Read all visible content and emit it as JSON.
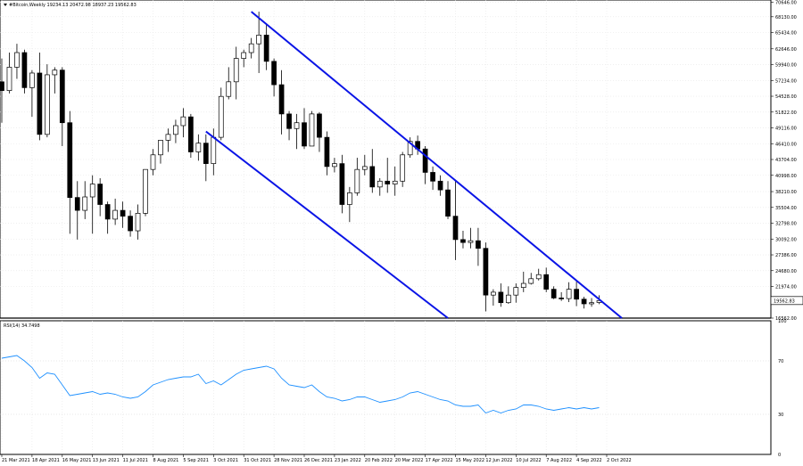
{
  "main_panel": {
    "title": "#Bitcoin,Weekly  19234.13 20472.98 18937.23 19562.83",
    "price_badge": "19562.83",
    "y_ticks": [
      "70646.00",
      "68130.00",
      "65434.00",
      "62646.00",
      "59940.00",
      "57234.00",
      "54528.00",
      "51822.00",
      "49116.00",
      "46410.00",
      "43704.00",
      "40998.00",
      "38210.00",
      "35504.00",
      "32798.00",
      "30092.00",
      "27386.00",
      "24680.00",
      "21974.00",
      "19562.83",
      "16562.00"
    ]
  },
  "rsi_panel": {
    "title": "RSI(14) 34.7498",
    "y_ticks": [
      "100",
      "70",
      "30",
      "0"
    ]
  },
  "x_ticks": [
    "21 Mar 2021",
    "18 Apr 2021",
    "16 May 2021",
    "13 Jun 2021",
    "11 Jul 2021",
    "8 Aug 2021",
    "5 Sep 2021",
    "3 Oct 2021",
    "31 Oct 2021",
    "28 Nov 2021",
    "26 Dec 2021",
    "23 Jan 2022",
    "20 Feb 2022",
    "20 Mar 2022",
    "17 Apr 2022",
    "15 May 2022",
    "12 Jun 2022",
    "10 Jul 2022",
    "7 Aug 2022",
    "4 Sep 2022",
    "2 Oct 2022"
  ],
  "chart_data": {
    "type": "candlestick",
    "title": "#Bitcoin,Weekly",
    "ylim": [
      16562,
      71000
    ],
    "series": [
      {
        "name": "#Bitcoin,Weekly",
        "ohlc": [
          [
            57000,
            61000,
            50000,
            55500
          ],
          [
            55500,
            62000,
            55000,
            59500
          ],
          [
            59500,
            63500,
            57500,
            62000
          ],
          [
            62000,
            62500,
            55000,
            56000
          ],
          [
            56000,
            59000,
            51000,
            58500
          ],
          [
            58500,
            62000,
            47000,
            48000
          ],
          [
            48000,
            60000,
            47500,
            58200
          ],
          [
            58200,
            59500,
            55000,
            59000
          ],
          [
            59000,
            59500,
            46000,
            50000
          ],
          [
            50000,
            52000,
            31000,
            37200
          ],
          [
            37200,
            40000,
            30000,
            35000
          ],
          [
            35000,
            40000,
            33500,
            37300
          ],
          [
            37300,
            41000,
            31000,
            39500
          ],
          [
            39500,
            40500,
            34000,
            36000
          ],
          [
            36000,
            36500,
            31000,
            33500
          ],
          [
            33500,
            37000,
            32500,
            35000
          ],
          [
            35000,
            36500,
            32000,
            34000
          ],
          [
            34000,
            35000,
            30500,
            31500
          ],
          [
            31500,
            36000,
            30000,
            34500
          ],
          [
            34500,
            42000,
            34000,
            42000
          ],
          [
            42000,
            45500,
            41000,
            44500
          ],
          [
            44500,
            47000,
            43000,
            47000
          ],
          [
            47000,
            49000,
            45000,
            48000
          ],
          [
            48000,
            50500,
            46500,
            49500
          ],
          [
            49500,
            52500,
            47500,
            51000
          ],
          [
            51000,
            51500,
            44000,
            45000
          ],
          [
            45000,
            48000,
            43500,
            46500
          ],
          [
            46500,
            48000,
            40000,
            43000
          ],
          [
            43000,
            49000,
            41000,
            47500
          ],
          [
            47500,
            56000,
            47000,
            54500
          ],
          [
            54500,
            59500,
            54000,
            57000
          ],
          [
            57000,
            63000,
            54000,
            61000
          ],
          [
            61000,
            62500,
            59500,
            62000
          ],
          [
            62000,
            64500,
            61000,
            63500
          ],
          [
            63500,
            69000,
            58500,
            65000
          ],
          [
            65000,
            67000,
            59000,
            60500
          ],
          [
            60500,
            61000,
            54500,
            56500
          ],
          [
            56500,
            59000,
            48000,
            51500
          ],
          [
            51500,
            52000,
            47000,
            49000
          ],
          [
            49000,
            51500,
            45500,
            50000
          ],
          [
            50000,
            52500,
            45500,
            46000
          ],
          [
            46000,
            52000,
            46000,
            51500
          ],
          [
            51500,
            51800,
            45000,
            47500
          ],
          [
            47500,
            48500,
            41000,
            42500
          ],
          [
            42500,
            44000,
            41500,
            43000
          ],
          [
            43000,
            44500,
            34500,
            36000
          ],
          [
            36000,
            39000,
            33000,
            38000
          ],
          [
            38000,
            44000,
            37500,
            42000
          ],
          [
            42000,
            44500,
            41000,
            42500
          ],
          [
            42500,
            45500,
            38000,
            39000
          ],
          [
            39000,
            40500,
            37500,
            40000
          ],
          [
            40000,
            44000,
            38000,
            39500
          ],
          [
            39500,
            42500,
            37500,
            40000
          ],
          [
            40000,
            45000,
            39000,
            44500
          ],
          [
            44500,
            47500,
            44000,
            46800
          ],
          [
            46800,
            47800,
            44500,
            45500
          ],
          [
            45500,
            46000,
            39500,
            41500
          ],
          [
            41500,
            42500,
            38500,
            40000
          ],
          [
            40000,
            41000,
            37500,
            38500
          ],
          [
            38500,
            40000,
            33500,
            34000
          ],
          [
            34000,
            40000,
            26500,
            30000
          ],
          [
            30000,
            31500,
            28500,
            29500
          ],
          [
            29500,
            32000,
            28500,
            29800
          ],
          [
            29800,
            32000,
            25500,
            28500
          ],
          [
            28500,
            29500,
            17700,
            20500
          ],
          [
            20500,
            21500,
            18700,
            21000
          ],
          [
            21000,
            22500,
            18500,
            19200
          ],
          [
            19200,
            22000,
            19000,
            20500
          ],
          [
            20500,
            22500,
            19200,
            21800
          ],
          [
            21800,
            24500,
            21000,
            22500
          ],
          [
            22500,
            24300,
            22300,
            23300
          ],
          [
            23300,
            25000,
            23000,
            24000
          ],
          [
            24000,
            25200,
            21000,
            21500
          ],
          [
            21500,
            22000,
            19800,
            20000
          ],
          [
            20000,
            21000,
            19500,
            19900
          ],
          [
            19900,
            22700,
            19300,
            21500
          ],
          [
            21500,
            22800,
            18600,
            19800
          ],
          [
            19800,
            20200,
            18200,
            19000
          ],
          [
            19000,
            20000,
            18500,
            19200
          ],
          [
            19234.13,
            20472.98,
            18937.23,
            19562.83
          ]
        ]
      }
    ],
    "channel_lines": [
      {
        "name": "upper",
        "points": [
          [
            "31 Oct 2021",
            69000
          ],
          [
            "9 Oct 2022",
            16562
          ]
        ]
      },
      {
        "name": "lower",
        "points": [
          [
            "19 Sep 2021",
            48500
          ],
          [
            "1 May 2022",
            16562
          ]
        ]
      }
    ],
    "rsi": {
      "name": "RSI(14)",
      "last": 34.7498,
      "ylim": [
        0,
        100
      ],
      "levels": [
        70,
        30
      ],
      "values": [
        72,
        73,
        74,
        70,
        65,
        57,
        61,
        60,
        52,
        44,
        45,
        46,
        47,
        45,
        46,
        45,
        43,
        42,
        43,
        47,
        52,
        54,
        56,
        57,
        58,
        58,
        60,
        53,
        55,
        52,
        56,
        60,
        63,
        64,
        65,
        66,
        64,
        57,
        52,
        51,
        50,
        52,
        47,
        43,
        42,
        40,
        41,
        43,
        43,
        41,
        39,
        40,
        41,
        43,
        46,
        47,
        45,
        43,
        41,
        40,
        37,
        36,
        36,
        37,
        31,
        33,
        31,
        33,
        34,
        37,
        37,
        36,
        34,
        33,
        34,
        35,
        34,
        35,
        34,
        35
      ]
    }
  }
}
